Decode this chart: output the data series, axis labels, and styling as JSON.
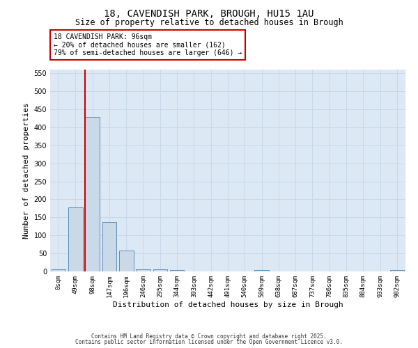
{
  "title_line1": "18, CAVENDISH PARK, BROUGH, HU15 1AU",
  "title_line2": "Size of property relative to detached houses in Brough",
  "xlabel": "Distribution of detached houses by size in Brough",
  "ylabel": "Number of detached properties",
  "bar_labels": [
    "0sqm",
    "49sqm",
    "98sqm",
    "147sqm",
    "196sqm",
    "246sqm",
    "295sqm",
    "344sqm",
    "393sqm",
    "442sqm",
    "491sqm",
    "540sqm",
    "589sqm",
    "638sqm",
    "687sqm",
    "737sqm",
    "786sqm",
    "835sqm",
    "884sqm",
    "933sqm",
    "982sqm"
  ],
  "bar_values": [
    5,
    178,
    428,
    137,
    57,
    6,
    5,
    3,
    0,
    0,
    0,
    0,
    3,
    0,
    0,
    0,
    0,
    0,
    0,
    0,
    3
  ],
  "bar_color": "#c9d9e8",
  "bar_edge_color": "#5b8db8",
  "grid_color": "#c8d8e8",
  "background_color": "#dce9f5",
  "vline_bar_index": 2,
  "vline_color": "#cc0000",
  "annotation_text": "18 CAVENDISH PARK: 96sqm\n← 20% of detached houses are smaller (162)\n79% of semi-detached houses are larger (646) →",
  "annotation_box_color": "#ffffff",
  "annotation_border_color": "#cc0000",
  "ylim": [
    0,
    560
  ],
  "yticks": [
    0,
    50,
    100,
    150,
    200,
    250,
    300,
    350,
    400,
    450,
    500,
    550
  ],
  "footer_line1": "Contains HM Land Registry data © Crown copyright and database right 2025.",
  "footer_line2": "Contains public sector information licensed under the Open Government Licence v3.0."
}
